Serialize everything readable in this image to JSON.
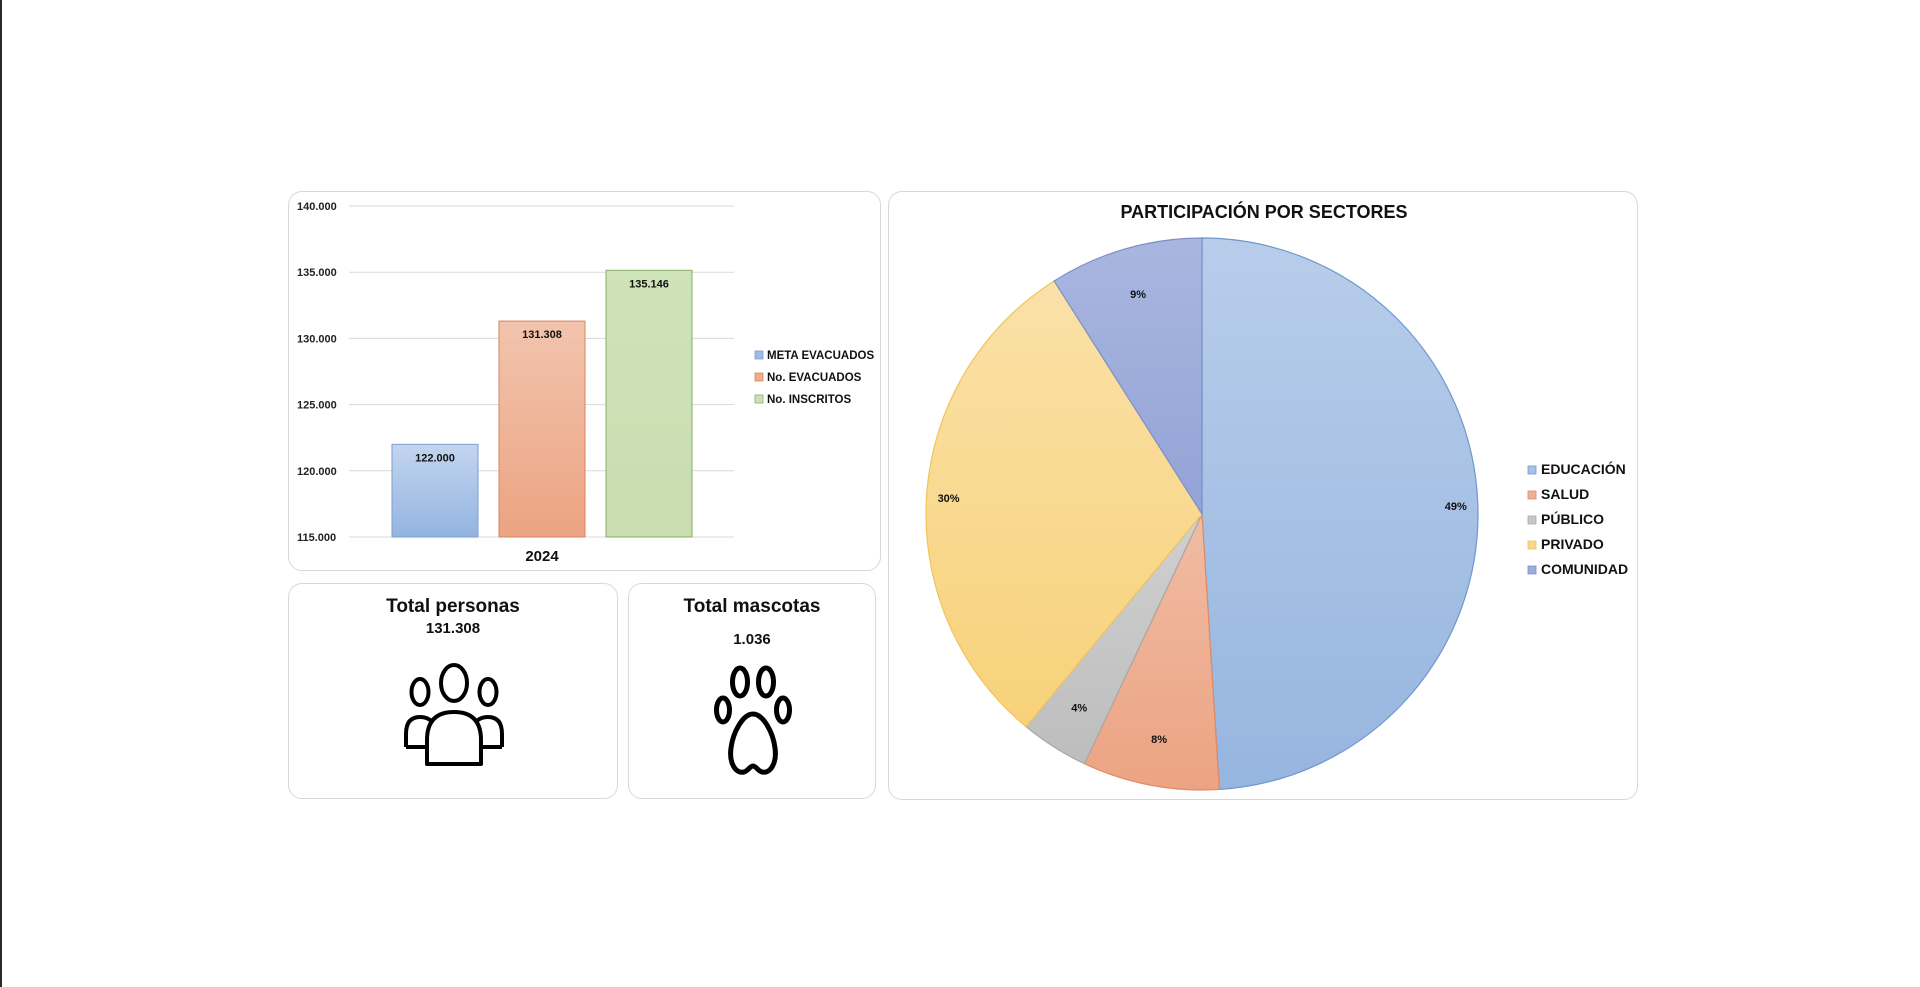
{
  "chart_data": [
    {
      "type": "bar",
      "title": "",
      "categories": [
        "2024"
      ],
      "series": [
        {
          "name": "META EVACUADOS",
          "values": [
            122000
          ],
          "label": "122.000",
          "color": "#9dbbe3"
        },
        {
          "name": "No. EVACUADOS",
          "values": [
            131308
          ],
          "label": "131.308",
          "color": "#efad8b"
        },
        {
          "name": "No. INSCRITOS",
          "values": [
            135146
          ],
          "label": "135.146",
          "color": "#cde1b7"
        }
      ],
      "ylim": [
        115000,
        140000
      ],
      "yticks": [
        115000,
        120000,
        125000,
        130000,
        135000,
        140000
      ],
      "ytick_labels": [
        "115.000",
        "120.000",
        "125.000",
        "130.000",
        "135.000",
        "140.000"
      ],
      "grid": true,
      "legend": "right"
    },
    {
      "type": "pie",
      "title": "PARTICIPACIÓN POR SECTORES",
      "slices": [
        {
          "name": "EDUCACIÓN",
          "value": 49,
          "label": "49%",
          "color": "#a7c2e6"
        },
        {
          "name": "SALUD",
          "value": 8,
          "label": "8%",
          "color": "#efb195"
        },
        {
          "name": "PÚBLICO",
          "value": 4,
          "label": "4%",
          "color": "#c6c6c6"
        },
        {
          "name": "PRIVADO",
          "value": 30,
          "label": "30%",
          "color": "#f8d88c"
        },
        {
          "name": "COMUNIDAD",
          "value": 9,
          "label": "9%",
          "color": "#9eacdb"
        }
      ],
      "legend": "right"
    }
  ],
  "kpis": {
    "persons": {
      "title": "Total personas",
      "value": "131.308",
      "icon": "people-group-icon"
    },
    "pets": {
      "title": "Total mascotas",
      "value": "1.036",
      "icon": "paw-icon"
    }
  }
}
